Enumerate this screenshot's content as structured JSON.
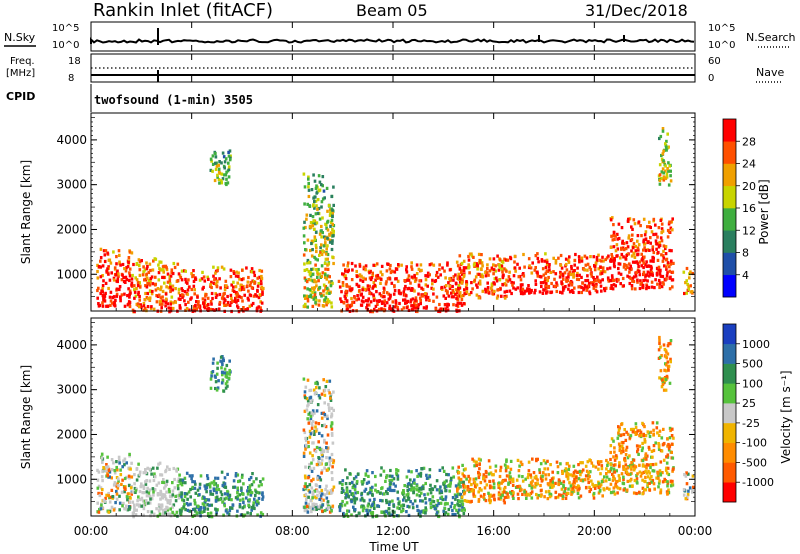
{
  "header": {
    "station": "Rankin Inlet (fitACF)",
    "beam": "Beam 05",
    "date": "31/Dec/2018"
  },
  "noise_panel": {
    "left_label": "N.Sky",
    "right_label": "N.Search",
    "right_line_style": "dotted",
    "left_ticks": [
      "10^5",
      "10^0"
    ],
    "right_ticks": [
      "10^5",
      "10^0"
    ]
  },
  "freq_panel": {
    "left_label_top": "Freq.",
    "left_label_bottom": "[MHz]",
    "right_label": "Nave",
    "right_line_style": "dotted",
    "left_ticks": [
      "18",
      "8"
    ],
    "right_ticks": [
      "60",
      "0"
    ]
  },
  "cpid": {
    "label": "CPID",
    "value": "twofsound (1-min) 3505"
  },
  "time_axis": {
    "label": "Time UT",
    "ticks": [
      "00:00",
      "04:00",
      "08:00",
      "12:00",
      "16:00",
      "20:00",
      "00:00"
    ]
  },
  "chart_data": [
    {
      "type": "heatmap",
      "title": "",
      "xlabel": "Time UT",
      "ylabel": "Slant Range [km]",
      "x_ticks": [
        "00:00",
        "04:00",
        "08:00",
        "12:00",
        "16:00",
        "20:00",
        "00:00"
      ],
      "xlim_hours": [
        0,
        24
      ],
      "y_ticks": [
        1000,
        2000,
        3000,
        4000
      ],
      "ylim": [
        180,
        4600
      ],
      "colorbar": {
        "label": "Power [dB]",
        "ticks": [
          "28",
          "24",
          "20",
          "16",
          "12",
          "8",
          "4"
        ],
        "range": [
          0,
          32
        ],
        "colors": [
          "#0000ff",
          "#1f4fa8",
          "#2a7f5f",
          "#3fae3f",
          "#c8d400",
          "#f0a000",
          "#ff5000",
          "#ff0000"
        ]
      },
      "echo_regions": [
        {
          "t_start": 0.2,
          "t_end": 1.6,
          "r_min": 300,
          "r_max": 1600,
          "level": 26
        },
        {
          "t_start": 1.6,
          "t_end": 3.5,
          "r_min": 200,
          "r_max": 1400,
          "level": 22
        },
        {
          "t_start": 3.5,
          "t_end": 6.8,
          "r_min": 200,
          "r_max": 1200,
          "level": 24
        },
        {
          "t_start": 4.7,
          "t_end": 5.5,
          "r_min": 3000,
          "r_max": 3800,
          "level": 12
        },
        {
          "t_start": 8.4,
          "t_end": 9.6,
          "r_min": 300,
          "r_max": 3300,
          "level": 14
        },
        {
          "t_start": 9.8,
          "t_end": 14.8,
          "r_min": 200,
          "r_max": 1300,
          "level": 26
        },
        {
          "t_start": 14.5,
          "t_end": 16.5,
          "r_min": 500,
          "r_max": 1500,
          "level": 22
        },
        {
          "t_start": 16.5,
          "t_end": 20.6,
          "r_min": 600,
          "r_max": 1500,
          "level": 26
        },
        {
          "t_start": 20.6,
          "t_end": 23.1,
          "r_min": 700,
          "r_max": 2300,
          "level": 26
        },
        {
          "t_start": 22.5,
          "t_end": 23.0,
          "r_min": 3000,
          "r_max": 4300,
          "level": 14
        },
        {
          "t_start": 23.5,
          "t_end": 23.9,
          "r_min": 600,
          "r_max": 1200,
          "level": 20
        }
      ]
    },
    {
      "type": "heatmap",
      "title": "",
      "xlabel": "Time UT",
      "ylabel": "Slant Range [km]",
      "x_ticks": [
        "00:00",
        "04:00",
        "08:00",
        "12:00",
        "16:00",
        "20:00",
        "00:00"
      ],
      "xlim_hours": [
        0,
        24
      ],
      "y_ticks": [
        1000,
        2000,
        3000,
        4000
      ],
      "ylim": [
        180,
        4600
      ],
      "colorbar": {
        "label": "Velocity [m s⁻¹]",
        "ticks": [
          "1000",
          "500",
          "100",
          "25",
          "-25",
          "-100",
          "-500",
          "-1000"
        ],
        "colors": [
          "#ff0000",
          "#ff5a00",
          "#ff8c00",
          "#f0b400",
          "#c8c8c8",
          "#56c23c",
          "#2f8f4f",
          "#2d6fa8",
          "#1a3fc0"
        ]
      },
      "echo_regions": [
        {
          "t_start": 0.2,
          "t_end": 1.6,
          "r_min": 300,
          "r_max": 1600,
          "v_class": "mixed"
        },
        {
          "t_start": 1.6,
          "t_end": 3.5,
          "r_min": 200,
          "r_max": 1400,
          "v_class": "ground"
        },
        {
          "t_start": 3.5,
          "t_end": 6.8,
          "r_min": 200,
          "r_max": 1200,
          "v_class": "positive"
        },
        {
          "t_start": 4.7,
          "t_end": 5.5,
          "r_min": 3000,
          "r_max": 3800,
          "v_class": "positive"
        },
        {
          "t_start": 8.4,
          "t_end": 9.6,
          "r_min": 300,
          "r_max": 3300,
          "v_class": "mixed"
        },
        {
          "t_start": 9.8,
          "t_end": 14.8,
          "r_min": 200,
          "r_max": 1300,
          "v_class": "positive"
        },
        {
          "t_start": 14.5,
          "t_end": 16.5,
          "r_min": 500,
          "r_max": 1500,
          "v_class": "negative"
        },
        {
          "t_start": 16.5,
          "t_end": 20.6,
          "r_min": 600,
          "r_max": 1500,
          "v_class": "negative"
        },
        {
          "t_start": 20.6,
          "t_end": 23.1,
          "r_min": 700,
          "r_max": 2300,
          "v_class": "negative"
        },
        {
          "t_start": 22.5,
          "t_end": 23.0,
          "r_min": 3000,
          "r_max": 4300,
          "v_class": "negative"
        },
        {
          "t_start": 23.5,
          "t_end": 23.9,
          "r_min": 600,
          "r_max": 1200,
          "v_class": "mixed"
        }
      ]
    }
  ]
}
